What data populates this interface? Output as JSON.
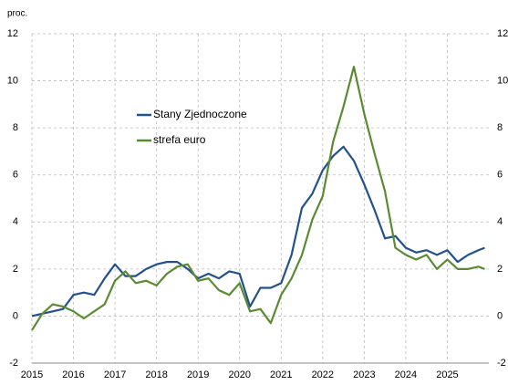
{
  "chart_data": {
    "type": "line",
    "y_unit_label": "proc.",
    "x": [
      2015.0,
      2015.25,
      2015.5,
      2015.75,
      2016.0,
      2016.25,
      2016.5,
      2016.75,
      2017.0,
      2017.25,
      2017.5,
      2017.75,
      2018.0,
      2018.25,
      2018.5,
      2018.75,
      2019.0,
      2019.25,
      2019.5,
      2019.75,
      2020.0,
      2020.25,
      2020.5,
      2020.75,
      2021.0,
      2021.25,
      2021.5,
      2021.75,
      2022.0,
      2022.25,
      2022.5,
      2022.75,
      2023.0,
      2023.25,
      2023.5,
      2023.75,
      2024.0,
      2024.25,
      2024.5,
      2024.75,
      2025.0,
      2025.25,
      2025.5,
      2025.75,
      2025.9
    ],
    "series": [
      {
        "name": "Stany Zjednoczone",
        "color": "#24508c",
        "values": [
          0.0,
          0.1,
          0.2,
          0.3,
          0.9,
          1.0,
          0.9,
          1.6,
          2.2,
          1.7,
          1.7,
          2.0,
          2.2,
          2.3,
          2.3,
          2.0,
          1.6,
          1.8,
          1.6,
          1.9,
          1.8,
          0.4,
          1.2,
          1.2,
          1.4,
          2.6,
          4.6,
          5.2,
          6.2,
          6.8,
          7.2,
          6.6,
          5.6,
          4.5,
          3.3,
          3.4,
          2.9,
          2.7,
          2.8,
          2.6,
          2.8,
          2.3,
          2.6,
          2.8,
          2.9
        ]
      },
      {
        "name": "strefa euro",
        "color": "#5b8a33",
        "values": [
          -0.6,
          0.1,
          0.5,
          0.4,
          0.2,
          -0.1,
          0.2,
          0.5,
          1.5,
          1.9,
          1.4,
          1.5,
          1.3,
          1.8,
          2.1,
          2.2,
          1.5,
          1.6,
          1.1,
          0.9,
          1.4,
          0.2,
          0.3,
          -0.3,
          0.9,
          1.6,
          2.6,
          4.1,
          5.1,
          7.4,
          8.9,
          10.6,
          8.6,
          6.9,
          5.3,
          2.9,
          2.6,
          2.4,
          2.6,
          2.0,
          2.4,
          2.0,
          2.0,
          2.1,
          2.0
        ]
      }
    ],
    "xlim": [
      2015,
      2026
    ],
    "xticks": [
      2015,
      2016,
      2017,
      2018,
      2019,
      2020,
      2021,
      2022,
      2023,
      2024,
      2025
    ],
    "ylim": [
      -2,
      12
    ],
    "yticks": [
      -2,
      0,
      2,
      4,
      6,
      8,
      10,
      12
    ],
    "grid": true,
    "legend": "upper left"
  }
}
